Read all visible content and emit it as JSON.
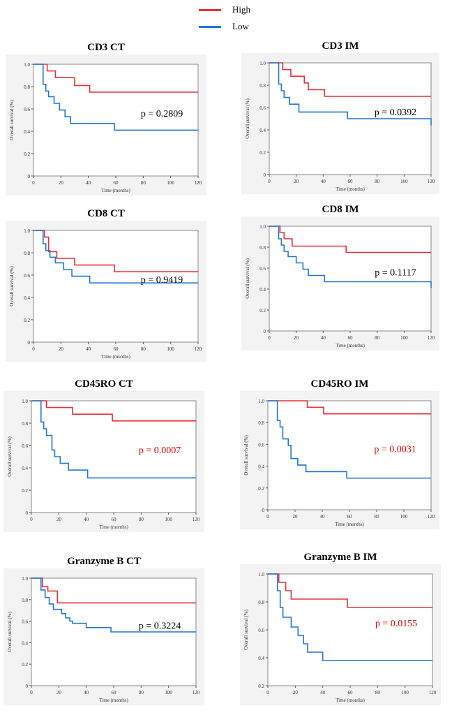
{
  "legend": {
    "high": {
      "label": "High",
      "color": "#e8303a"
    },
    "low": {
      "label": "Low",
      "color": "#1f77d4"
    }
  },
  "colors": {
    "pvalue_significant": "#e00000",
    "pvalue_normal": "#000000"
  },
  "chart_data": [
    {
      "type": "line",
      "step": true,
      "title": "CD3 CT",
      "xlabel": "Time (months)",
      "ylabel": "Overall survival (%)",
      "xlim": [
        0,
        120
      ],
      "ylim": [
        0,
        1.0
      ],
      "xticks": [
        0,
        20,
        40,
        60,
        80,
        100,
        120
      ],
      "yticks": [
        "0",
        "0.2",
        "0.4",
        "0.6",
        "0.8",
        "1.0"
      ],
      "yticks_values": [
        0,
        0.2,
        0.4,
        0.6,
        0.8,
        1.0
      ],
      "pvalue": "p = 0.2809",
      "significant": false,
      "series": [
        {
          "name": "High",
          "x": [
            0,
            10,
            16,
            30,
            41,
            120
          ],
          "y": [
            1.0,
            0.94,
            0.88,
            0.81,
            0.75,
            0.75
          ]
        },
        {
          "name": "Low",
          "x": [
            0,
            7,
            9,
            11,
            15,
            19,
            23,
            27,
            59,
            120
          ],
          "y": [
            1.0,
            0.82,
            0.76,
            0.71,
            0.65,
            0.59,
            0.53,
            0.47,
            0.41,
            0.41
          ]
        }
      ]
    },
    {
      "type": "line",
      "step": true,
      "title": "CD3 IM",
      "xlabel": "Time (months)",
      "ylabel": "Overall survival (%)",
      "xlim": [
        0,
        120
      ],
      "ylim": [
        0,
        1.0
      ],
      "xticks": [
        0,
        20,
        40,
        60,
        80,
        100,
        120
      ],
      "yticks": [
        "0",
        "0.2",
        "0.4",
        "0.6",
        "0.8",
        "1.0"
      ],
      "yticks_values": [
        0,
        0.2,
        0.4,
        0.6,
        0.8,
        1.0
      ],
      "pvalue": "p = 0.0392",
      "significant": false,
      "series": [
        {
          "name": "High",
          "x": [
            0,
            10,
            16,
            26,
            29,
            41,
            120
          ],
          "y": [
            1.0,
            0.94,
            0.88,
            0.82,
            0.76,
            0.7,
            0.7
          ]
        },
        {
          "name": "Low",
          "x": [
            0,
            7,
            9,
            11,
            15,
            22,
            58,
            120
          ],
          "y": [
            1.0,
            0.81,
            0.75,
            0.69,
            0.63,
            0.56,
            0.5,
            0.44
          ]
        }
      ]
    },
    {
      "type": "line",
      "step": true,
      "title": "CD8 CT",
      "xlabel": "Time (months)",
      "ylabel": "Overall survival (%)",
      "xlim": [
        0,
        120
      ],
      "ylim": [
        0,
        1.0
      ],
      "xticks": [
        0,
        20,
        40,
        60,
        80,
        100,
        120
      ],
      "yticks": [
        "0",
        "0.2",
        "0.4",
        "0.6",
        "0.8",
        "1.0"
      ],
      "yticks_values": [
        0,
        0.2,
        0.4,
        0.6,
        0.8,
        1.0
      ],
      "pvalue": "p = 0.9419",
      "significant": false,
      "series": [
        {
          "name": "High",
          "x": [
            0,
            8,
            11,
            17,
            30,
            59,
            120
          ],
          "y": [
            1.0,
            0.94,
            0.81,
            0.75,
            0.69,
            0.63,
            0.63
          ]
        },
        {
          "name": "Low",
          "x": [
            0,
            7,
            9,
            12,
            16,
            22,
            28,
            41,
            120
          ],
          "y": [
            1.0,
            0.88,
            0.82,
            0.76,
            0.71,
            0.65,
            0.59,
            0.53,
            0.53
          ]
        }
      ]
    },
    {
      "type": "line",
      "step": true,
      "title": "CD8 IM",
      "xlabel": "Time (months)",
      "ylabel": "Overall survival (%)",
      "xlim": [
        0,
        120
      ],
      "ylim": [
        0,
        1.0
      ],
      "xticks": [
        0,
        20,
        40,
        60,
        80,
        100,
        120
      ],
      "yticks": [
        "0",
        "0.2",
        "0.4",
        "0.6",
        "0.8",
        "1.0"
      ],
      "yticks_values": [
        0,
        0.2,
        0.4,
        0.6,
        0.8,
        1.0
      ],
      "pvalue": "p = 0.1117",
      "significant": false,
      "series": [
        {
          "name": "High",
          "x": [
            0,
            8,
            11,
            17,
            57,
            120
          ],
          "y": [
            1.0,
            0.94,
            0.88,
            0.81,
            0.75,
            0.75
          ]
        },
        {
          "name": "Low",
          "x": [
            0,
            7,
            9,
            11,
            14,
            20,
            25,
            29,
            41,
            120
          ],
          "y": [
            1.0,
            0.88,
            0.82,
            0.76,
            0.71,
            0.65,
            0.59,
            0.53,
            0.47,
            0.41
          ]
        }
      ]
    },
    {
      "type": "line",
      "step": true,
      "title": "CD45RO CT",
      "xlabel": "Time (months)",
      "ylabel": "Overall survival (%)",
      "xlim": [
        0,
        120
      ],
      "ylim": [
        0,
        1.0
      ],
      "xticks": [
        0,
        20,
        40,
        60,
        80,
        100,
        120
      ],
      "yticks": [
        "0",
        "0.2",
        "0.4",
        "0.6",
        "0.8",
        "1.0"
      ],
      "yticks_values": [
        0,
        0.2,
        0.4,
        0.6,
        0.8,
        1.0
      ],
      "pvalue": "p = 0.0007",
      "significant": true,
      "series": [
        {
          "name": "High",
          "x": [
            0,
            11,
            30,
            59,
            120
          ],
          "y": [
            1.0,
            0.94,
            0.88,
            0.82,
            0.82
          ]
        },
        {
          "name": "Low",
          "x": [
            0,
            7,
            9,
            11,
            15,
            17,
            21,
            27,
            41,
            120
          ],
          "y": [
            1.0,
            0.81,
            0.75,
            0.69,
            0.56,
            0.5,
            0.44,
            0.38,
            0.31,
            0.31
          ]
        }
      ]
    },
    {
      "type": "line",
      "step": true,
      "title": "CD45RO IM",
      "xlabel": "Time (months)",
      "ylabel": "Overall survival (%)",
      "xlim": [
        0,
        120
      ],
      "ylim": [
        0,
        1.0
      ],
      "xticks": [
        0,
        20,
        40,
        60,
        80,
        100,
        120
      ],
      "yticks": [
        "0",
        "0.2",
        "0.4",
        "0.6",
        "0.8",
        "1.0"
      ],
      "yticks_values": [
        0,
        0.2,
        0.4,
        0.6,
        0.8,
        1.0
      ],
      "pvalue": "p = 0.0031",
      "significant": true,
      "series": [
        {
          "name": "High",
          "x": [
            0,
            29,
            41,
            120
          ],
          "y": [
            1.0,
            0.94,
            0.88,
            0.88
          ]
        },
        {
          "name": "Low",
          "x": [
            0,
            7,
            9,
            11,
            15,
            17,
            22,
            28,
            58,
            120
          ],
          "y": [
            1.0,
            0.82,
            0.76,
            0.65,
            0.59,
            0.47,
            0.41,
            0.35,
            0.29,
            0.29
          ]
        }
      ]
    },
    {
      "type": "line",
      "step": true,
      "title": "Granzyme B CT",
      "xlabel": "Time (months)",
      "ylabel": "Overall survival (%)",
      "xlim": [
        0,
        120
      ],
      "ylim": [
        0,
        1.0
      ],
      "xticks": [
        0,
        20,
        40,
        60,
        80,
        100,
        120
      ],
      "yticks": [
        "0",
        "0.2",
        "0.4",
        "0.6",
        "0.8",
        "1.0"
      ],
      "yticks_values": [
        0,
        0.2,
        0.4,
        0.6,
        0.8,
        1.0
      ],
      "pvalue": "p = 0.3224",
      "significant": false,
      "series": [
        {
          "name": "High",
          "x": [
            0,
            8,
            12,
            19,
            120
          ],
          "y": [
            1.0,
            0.92,
            0.88,
            0.77,
            0.77
          ]
        },
        {
          "name": "Low",
          "x": [
            0,
            7,
            10,
            13,
            16,
            22,
            25,
            28,
            30,
            40,
            58,
            120
          ],
          "y": [
            1.0,
            0.89,
            0.82,
            0.76,
            0.71,
            0.67,
            0.63,
            0.6,
            0.58,
            0.54,
            0.5,
            0.5
          ]
        }
      ]
    },
    {
      "type": "line",
      "step": true,
      "title": "Granzyme B IM",
      "xlabel": "Time (months)",
      "ylabel": "Overall survival (%)",
      "xlim": [
        0,
        120
      ],
      "ylim": [
        0.2,
        1.0
      ],
      "xticks": [
        0,
        20,
        40,
        60,
        80,
        100,
        120
      ],
      "yticks": [
        "0.2",
        "0.4",
        "0.6",
        "0.8",
        "1.0"
      ],
      "yticks_values": [
        0.2,
        0.4,
        0.6,
        0.8,
        1.0
      ],
      "pvalue": "p = 0.0155",
      "significant": true,
      "series": [
        {
          "name": "High",
          "x": [
            0,
            8,
            13,
            17,
            58,
            120
          ],
          "y": [
            1.0,
            0.94,
            0.88,
            0.82,
            0.76,
            0.76
          ]
        },
        {
          "name": "Low",
          "x": [
            0,
            7,
            9,
            11,
            17,
            22,
            26,
            29,
            40,
            120
          ],
          "y": [
            1.0,
            0.88,
            0.76,
            0.69,
            0.62,
            0.56,
            0.5,
            0.44,
            0.38,
            0.38
          ]
        }
      ]
    }
  ]
}
